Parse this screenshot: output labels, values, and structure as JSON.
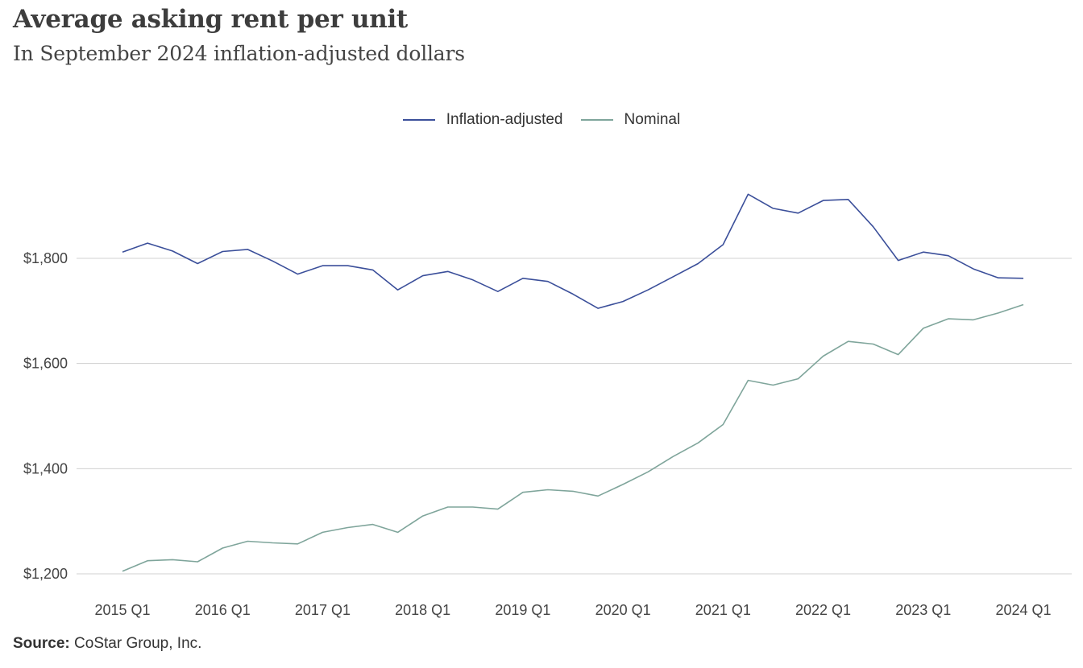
{
  "header": {
    "title": "Average asking rent per unit",
    "subtitle": "In September 2024 inflation-adjusted dollars"
  },
  "footer": {
    "source_label": "Source:",
    "source_text": " CoStar Group, Inc."
  },
  "colors": {
    "inflation_adjusted": "#3b4f9a",
    "nominal": "#7fa59b",
    "grid": "#d0d0d0"
  },
  "chart_data": {
    "type": "line",
    "title": "Average asking rent per unit",
    "subtitle": "In September 2024 inflation-adjusted dollars",
    "xlabel": "",
    "ylabel": "",
    "ylim": [
      1200,
      2000
    ],
    "yticks": [
      1200,
      1400,
      1600,
      1800
    ],
    "ytick_labels": [
      "$1,200",
      "$1,400",
      "$1,600",
      "$1,800"
    ],
    "xtick_labels": [
      "2015 Q1",
      "2016 Q1",
      "2017 Q1",
      "2018 Q1",
      "2019 Q1",
      "2020 Q1",
      "2021 Q1",
      "2022 Q1",
      "2023 Q1",
      "2024 Q1"
    ],
    "grid": "horizontal",
    "legend": "top-center",
    "x": [
      "2015 Q1",
      "2015 Q2",
      "2015 Q3",
      "2015 Q4",
      "2016 Q1",
      "2016 Q2",
      "2016 Q3",
      "2016 Q4",
      "2017 Q1",
      "2017 Q2",
      "2017 Q3",
      "2017 Q4",
      "2018 Q1",
      "2018 Q2",
      "2018 Q3",
      "2018 Q4",
      "2019 Q1",
      "2019 Q2",
      "2019 Q3",
      "2019 Q4",
      "2020 Q1",
      "2020 Q2",
      "2020 Q3",
      "2020 Q4",
      "2021 Q1",
      "2021 Q2",
      "2021 Q3",
      "2021 Q4",
      "2022 Q1",
      "2022 Q2",
      "2022 Q3",
      "2022 Q4",
      "2023 Q1",
      "2023 Q2",
      "2023 Q3",
      "2023 Q4",
      "2024 Q1"
    ],
    "series": [
      {
        "name": "Inflation-adjusted",
        "color": "#3b4f9a",
        "values": [
          1812,
          1829,
          1814,
          1790,
          1813,
          1817,
          1795,
          1770,
          1786,
          1786,
          1778,
          1740,
          1767,
          1775,
          1759,
          1737,
          1762,
          1756,
          1732,
          1705,
          1718,
          1740,
          1765,
          1790,
          1826,
          1922,
          1895,
          1886,
          1910,
          1912,
          1860,
          1796,
          1812,
          1805,
          1780,
          1763,
          1762
        ]
      },
      {
        "name": "Nominal",
        "color": "#7fa59b",
        "values": [
          1205,
          1225,
          1227,
          1223,
          1249,
          1262,
          1259,
          1257,
          1279,
          1288,
          1294,
          1279,
          1310,
          1327,
          1327,
          1323,
          1355,
          1360,
          1357,
          1348,
          1370,
          1394,
          1423,
          1449,
          1484,
          1568,
          1559,
          1571,
          1614,
          1642,
          1637,
          1617,
          1667,
          1685,
          1683,
          1696,
          1712
        ]
      }
    ]
  }
}
